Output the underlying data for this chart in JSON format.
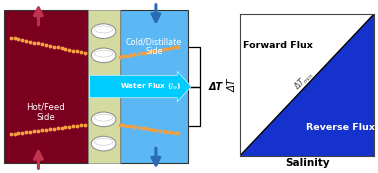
{
  "fig_width": 3.78,
  "fig_height": 1.73,
  "dpi": 100,
  "hot_color": "#7B0020",
  "cold_color": "#5BB8F5",
  "membrane_color": "#D4DBA0",
  "arrow_hot_color": "#C0334D",
  "arrow_cold_color": "#2A6BB5",
  "water_flux_arrow_color": "#00CCFF",
  "dotted_line_color": "#F5A040",
  "reverse_flux_color": "#1533CC",
  "ylabel_left": "ΔT",
  "xlabel_bottom": "Salinity",
  "forward_label": "Forward Flux",
  "reverse_label": "Reverse Flux",
  "hot_label": "Hot/Feed\nSide",
  "cold_label": "Cold/Distillate\nSide",
  "water_flux_label": "Water Flux (J_w)",
  "delta_T_label": "ΔT"
}
